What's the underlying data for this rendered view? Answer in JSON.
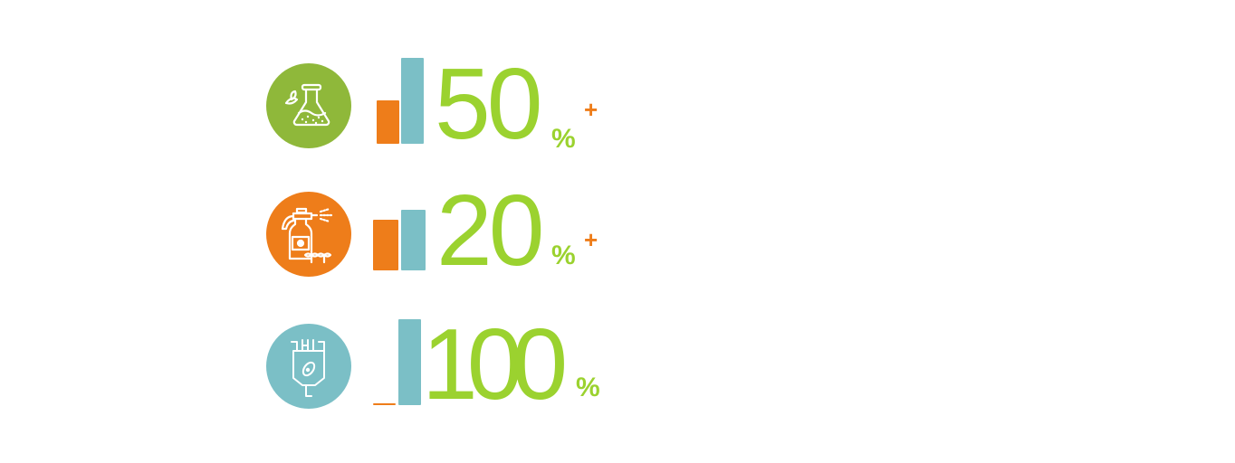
{
  "colors": {
    "green_circle": "#8fb83a",
    "orange": "#ee7d1a",
    "teal": "#7bbfc6",
    "number_green": "#9bd22f"
  },
  "chart_data": {
    "type": "bar",
    "rows": [
      {
        "icon": "flask-leaf-icon",
        "icon_color": "#8fb83a",
        "number": "50",
        "unit": "%",
        "suffix": "+",
        "values": [
          0.5,
          1.0
        ]
      },
      {
        "icon": "spray-bottle-icon",
        "icon_color": "#ee7d1a",
        "number": "20",
        "unit": "%",
        "suffix": "+",
        "values": [
          0.59,
          0.71
        ]
      },
      {
        "icon": "bioreactor-bacteria-icon",
        "icon_color": "#7bbfc6",
        "number": "100",
        "unit": "%",
        "suffix": "",
        "values": [
          0.01,
          1.0
        ]
      }
    ]
  }
}
